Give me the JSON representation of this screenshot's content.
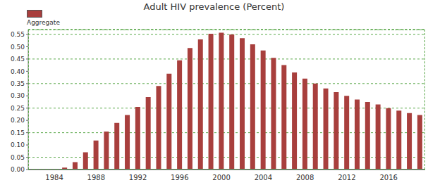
{
  "chart_data": {
    "type": "bar",
    "title": "Adult HIV prevalence (Percent)",
    "categories": [
      null,
      null,
      "1984",
      null,
      null,
      null,
      "1988",
      null,
      null,
      null,
      "1992",
      null,
      null,
      null,
      "1996",
      null,
      null,
      null,
      "2000",
      null,
      null,
      null,
      "2004",
      null,
      null,
      null,
      "2008",
      null,
      null,
      null,
      "2012",
      null,
      null,
      null,
      "2016",
      null,
      null,
      null
    ],
    "series": [
      {
        "name": "Aggregate",
        "color": "#a83f3d",
        "values": [
          0.001,
          0.002,
          0.003,
          0.008,
          0.03,
          0.07,
          0.118,
          0.155,
          0.19,
          0.222,
          0.255,
          0.295,
          0.34,
          0.39,
          0.445,
          0.495,
          0.53,
          0.553,
          0.557,
          0.55,
          0.535,
          0.51,
          0.485,
          0.455,
          0.425,
          0.395,
          0.37,
          0.35,
          0.33,
          0.315,
          0.3,
          0.285,
          0.275,
          0.265,
          0.25,
          0.24,
          0.23,
          0.222
        ]
      }
    ],
    "ylim": [
      0,
      0.57
    ],
    "yticks": [
      {
        "value": 0,
        "label": "0.00"
      },
      {
        "value": 0.05,
        "label": "0.05"
      },
      {
        "value": 0.1,
        "label": "0.10"
      },
      {
        "value": 0.15,
        "label": "0.15"
      },
      {
        "value": 0.2,
        "label": "0.20"
      },
      {
        "value": 0.25,
        "label": "0.25"
      },
      {
        "value": 0.3,
        "label": "0.30"
      },
      {
        "value": 0.35,
        "label": "0.35"
      },
      {
        "value": 0.4,
        "label": "0.40"
      },
      {
        "value": 0.45,
        "label": "0.45"
      },
      {
        "value": 0.5,
        "label": "0.50"
      },
      {
        "value": 0.55,
        "label": "0.55"
      }
    ],
    "grid": true,
    "legend": "top-left"
  }
}
